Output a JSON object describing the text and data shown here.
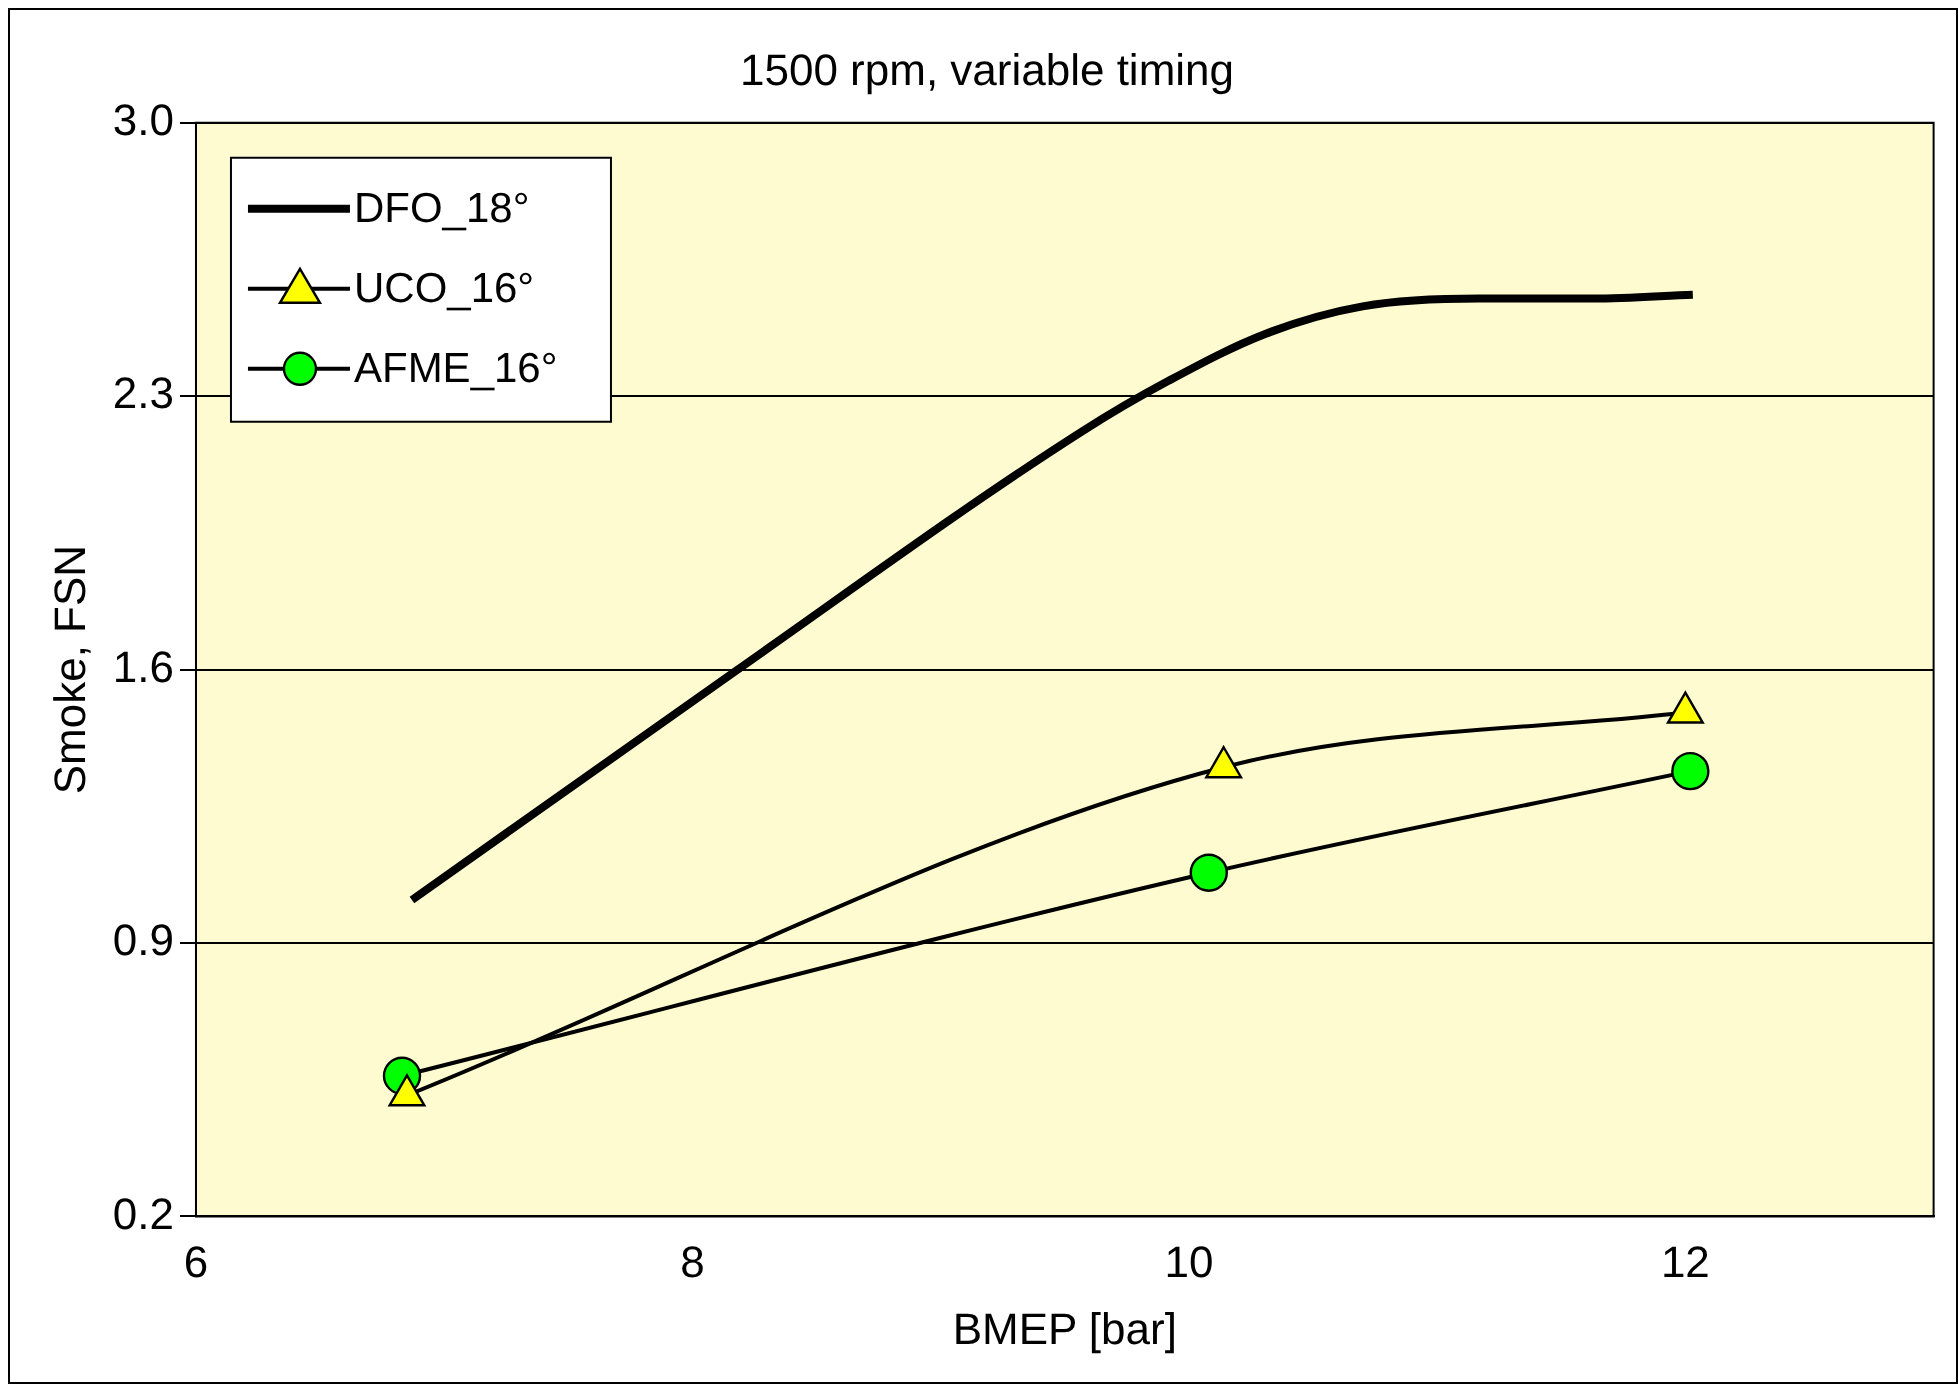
{
  "chart_data": {
    "type": "line",
    "title": "1500 rpm, variable timing",
    "xlabel": "BMEP [bar]",
    "ylabel": "Smoke, FSN",
    "xlim": [
      6,
      13
    ],
    "xticks": [
      6,
      8,
      10,
      12
    ],
    "ylim": [
      0.2,
      3.0
    ],
    "yticks": [
      {
        "value": 0.2,
        "label": "0.2"
      },
      {
        "value": 0.9,
        "label": "0.9"
      },
      {
        "value": 1.6,
        "label": "1.6"
      },
      {
        "value": 2.3,
        "label": "2.3"
      },
      {
        "value": 3.0,
        "label": "3.0"
      }
    ],
    "grid": "y",
    "legend": "top left",
    "series": [
      {
        "name": "DFO_18°",
        "color": "#000000",
        "marker": "none",
        "x": [
          6.87,
          8.16,
          9.57,
          9.92,
          10.31,
          10.7,
          11.17,
          11.63,
          12.03
        ],
        "values": [
          1.01,
          1.59,
          2.21,
          2.34,
          2.46,
          2.53,
          2.55,
          2.55,
          2.56
        ]
      },
      {
        "name": "UCO_16°",
        "color": "#ffff00",
        "marker": "triangle",
        "x": [
          6.85,
          10.14,
          12.0
        ],
        "values": [
          0.51,
          1.35,
          1.49
        ]
      },
      {
        "name": "AFME_16°",
        "color": "#00ff00",
        "marker": "circle",
        "x": [
          6.83,
          10.08,
          12.02
        ],
        "values": [
          0.56,
          1.08,
          1.34
        ]
      }
    ]
  }
}
